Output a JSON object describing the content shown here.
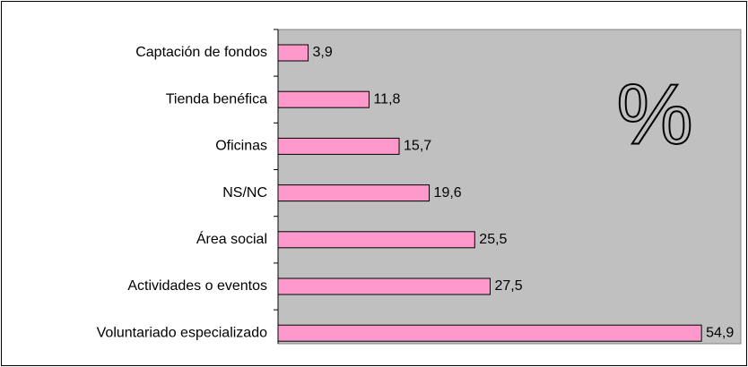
{
  "chart_data": {
    "type": "hbar",
    "categories": [
      "Captación de fondos",
      "Tienda benéfica",
      "Oficinas",
      "NS/NC",
      "Área social",
      "Actividades o eventos",
      "Voluntariado especializado"
    ],
    "values": [
      3.9,
      11.8,
      15.7,
      19.6,
      25.5,
      27.5,
      54.9
    ],
    "value_labels": [
      "3,9",
      "11,8",
      "15,7",
      "19,6",
      "25,5",
      "27,5",
      "54,9"
    ],
    "color": "#ff99cc",
    "xlim": [
      0,
      60
    ],
    "annotation": "%"
  }
}
